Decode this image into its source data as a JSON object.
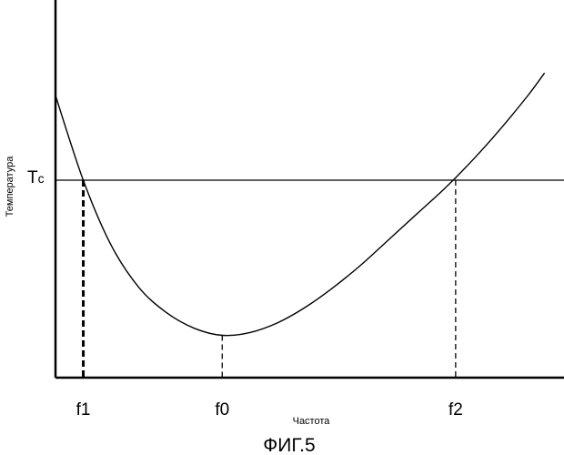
{
  "chart_data": {
    "type": "line",
    "figure_label": "ФИГ.5",
    "xlabel": "Частота",
    "ylabel": "Температура",
    "threshold": {
      "label_main": "T",
      "label_sub": "c",
      "value": 7.0
    },
    "xlim": [
      0,
      18.3
    ],
    "ylim": [
      0,
      10
    ],
    "x_ticks": [
      {
        "label": "f1",
        "x": 1.0,
        "style": "thick-dashed"
      },
      {
        "label": "f0",
        "x": 6.0,
        "style": "dashed"
      },
      {
        "label": "f2",
        "x": 14.4,
        "style": "dashed"
      }
    ],
    "series": [
      {
        "x": [
          0,
          1,
          2,
          3,
          4,
          5,
          6,
          7,
          8,
          9,
          10,
          11,
          12,
          13,
          14,
          15,
          16,
          17,
          17.6
        ],
        "y": [
          10.0,
          7.0,
          4.7,
          3.2,
          2.3,
          1.75,
          1.5,
          1.6,
          1.95,
          2.5,
          3.2,
          4.0,
          4.9,
          5.8,
          6.7,
          7.7,
          8.8,
          10.0,
          10.8
        ]
      }
    ]
  }
}
